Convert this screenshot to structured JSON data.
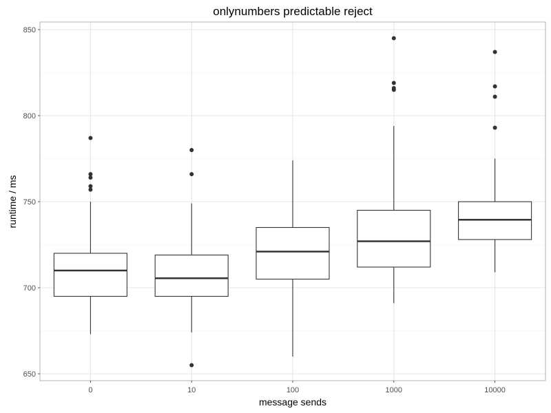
{
  "chart_data": {
    "type": "box",
    "title": "onlynumbers predictable reject",
    "xlabel": "message sends",
    "ylabel": "runtime / ms",
    "ylim": [
      645,
      855
    ],
    "yticks": [
      650,
      700,
      750,
      800,
      850
    ],
    "grid": true,
    "categories": [
      "0",
      "10",
      "100",
      "1000",
      "10000"
    ],
    "boxes": [
      {
        "category": "0",
        "whisker_low": 673,
        "q1": 695,
        "median": 710,
        "q3": 720,
        "whisker_high": 750,
        "outliers": [
          757,
          759,
          764,
          766,
          787
        ]
      },
      {
        "category": "10",
        "whisker_low": 674,
        "q1": 695,
        "median": 705.5,
        "q3": 719,
        "whisker_high": 749,
        "outliers": [
          655,
          766,
          780
        ]
      },
      {
        "category": "100",
        "whisker_low": 660,
        "q1": 705,
        "median": 721,
        "q3": 735,
        "whisker_high": 774,
        "outliers": []
      },
      {
        "category": "1000",
        "whisker_low": 691,
        "q1": 712,
        "median": 727,
        "q3": 745,
        "whisker_high": 794,
        "outliers": [
          815,
          816,
          819,
          845
        ]
      },
      {
        "category": "10000",
        "whisker_low": 709,
        "q1": 728,
        "median": 739.5,
        "q3": 750,
        "whisker_high": 775,
        "outliers": [
          793,
          811,
          817,
          837
        ]
      }
    ]
  },
  "colors": {
    "box_stroke": "#333333",
    "outlier_fill": "#333333",
    "grid_major": "#e5e5e5",
    "grid_minor": "#f2f2f2",
    "panel_border": "#b3b3b3",
    "tick_text": "#4d4d4d"
  }
}
